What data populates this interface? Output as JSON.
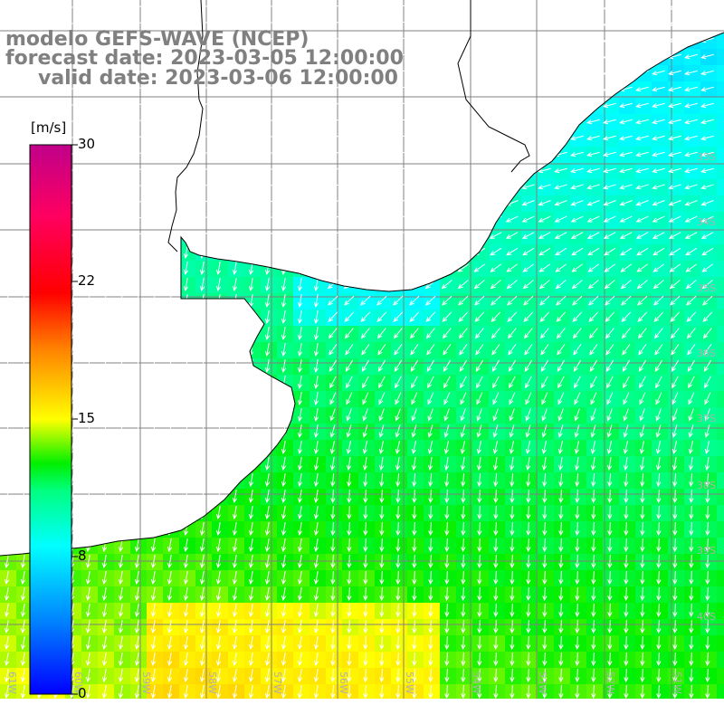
{
  "title": {
    "model": "modelo GEFS-WAVE (NCEP)",
    "forecast": "forecast date: 2023-03-05 12:00:00",
    "valid": "valid date: 2023-03-06 12:00:00"
  },
  "colorbar": {
    "unit": "[m/s]",
    "ticks": [
      "30",
      "22",
      "15",
      "8",
      "0"
    ],
    "min": 0,
    "max": 30,
    "colors": [
      "#0000ff",
      "#00a0ff",
      "#00ffff",
      "#00ff60",
      "#00ff00",
      "#a0ff00",
      "#ffff00",
      "#ff8000",
      "#ff0000",
      "#ff0060",
      "#c0008a"
    ]
  },
  "map": {
    "quantity": "wind speed (m/s) with wind direction arrows",
    "land_color": "#ffffff",
    "coast_color": "#000000",
    "grid_color": "#808080",
    "arrow_color": "#ffffff",
    "lon_labels": [
      "61W",
      "60W",
      "59W",
      "58W",
      "57W",
      "56W",
      "55W",
      "54W",
      "53W",
      "52W",
      "51W"
    ],
    "lat_labels": [
      "33S",
      "34S",
      "35S",
      "36S",
      "37S",
      "38S",
      "39S",
      "40S"
    ]
  }
}
